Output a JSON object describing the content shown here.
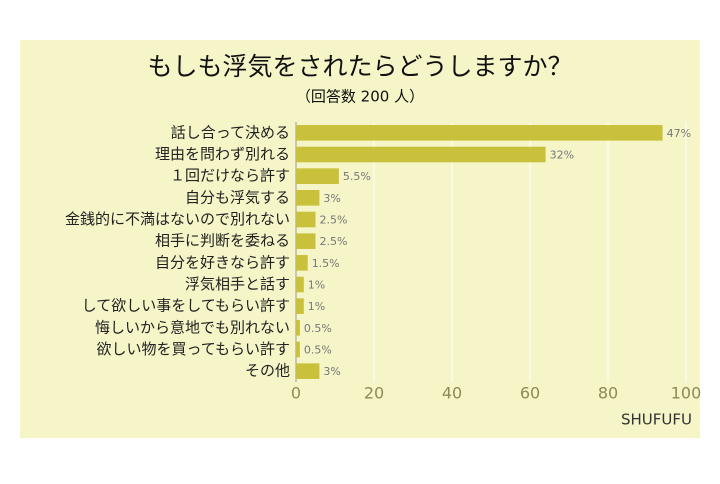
{
  "chart_data": {
    "type": "bar",
    "orientation": "horizontal",
    "title": "もしも浮気をされたらどうしますか？",
    "subtitle": "（回答数 200 人）",
    "source": "SHUFUFU",
    "categories": [
      "話し合って決める",
      "理由を問わず別れる",
      "１回だけなら許す",
      "自分も浮気する",
      "金銭的に不満はないので別れない",
      "相手に判断を委ねる",
      "自分を好きなら許す",
      "浮気相手と話す",
      "して欲しい事をしてもらい許す",
      "悔しいから意地でも別れない",
      "欲しい物を買ってもらい許す",
      "その他"
    ],
    "values": [
      94,
      64,
      11,
      6,
      5,
      5,
      3,
      2,
      2,
      1,
      1,
      6
    ],
    "value_labels": [
      "47%",
      "32%",
      "5.5%",
      "3%",
      "2.5%",
      "2.5%",
      "1.5%",
      "1%",
      "1%",
      "0.5%",
      "0.5%",
      "3%"
    ],
    "color": "#c9c13c",
    "xlim": [
      0,
      100
    ],
    "xticks": [
      0,
      20,
      40,
      60,
      80,
      100
    ],
    "grid": true
  }
}
